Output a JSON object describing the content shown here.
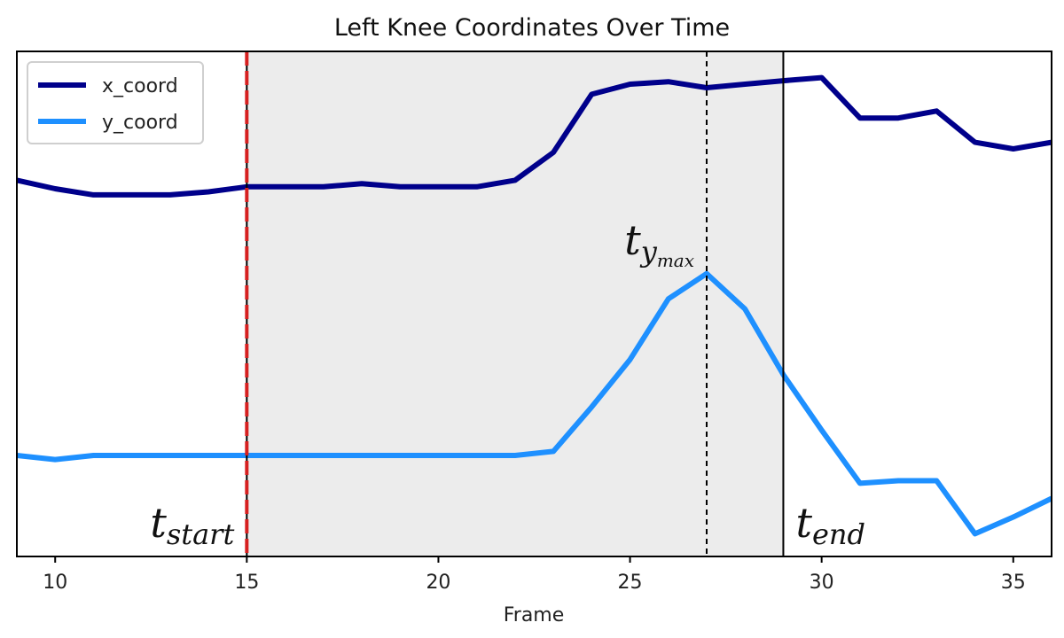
{
  "chart_data": {
    "type": "line",
    "title": "Left Knee Coordinates Over Time",
    "xlabel": "Frame",
    "ylabel": "",
    "xlim": [
      9,
      36
    ],
    "ylim": [
      0,
      1
    ],
    "xticks": [
      10,
      15,
      20,
      25,
      30,
      35
    ],
    "yticks_visible": false,
    "grid": false,
    "legend_position": "top-left",
    "series": [
      {
        "name": "x_coord",
        "color": "#00008b",
        "x": [
          9,
          10,
          11,
          12,
          13,
          14,
          15,
          16,
          17,
          18,
          19,
          20,
          21,
          22,
          23,
          24,
          25,
          26,
          27,
          28,
          29,
          30,
          31,
          32,
          33,
          34,
          35,
          36
        ],
        "y": [
          0.745,
          0.728,
          0.716,
          0.716,
          0.716,
          0.722,
          0.732,
          0.732,
          0.732,
          0.738,
          0.732,
          0.732,
          0.732,
          0.745,
          0.8,
          0.915,
          0.935,
          0.94,
          0.928,
          0.935,
          0.942,
          0.948,
          0.868,
          0.868,
          0.882,
          0.82,
          0.807,
          0.82
        ]
      },
      {
        "name": "y_coord",
        "color": "#1e90ff",
        "x": [
          9,
          10,
          11,
          12,
          13,
          14,
          15,
          16,
          17,
          18,
          19,
          20,
          21,
          22,
          23,
          24,
          25,
          26,
          27,
          28,
          29,
          30,
          31,
          32,
          33,
          34,
          35,
          36
        ],
        "y": [
          0.2,
          0.192,
          0.2,
          0.2,
          0.2,
          0.2,
          0.2,
          0.2,
          0.2,
          0.2,
          0.2,
          0.2,
          0.2,
          0.2,
          0.208,
          0.296,
          0.39,
          0.51,
          0.56,
          0.49,
          0.36,
          0.25,
          0.145,
          0.15,
          0.15,
          0.045,
          0.078,
          0.115
        ]
      }
    ],
    "shaded_region": {
      "x_start": 15,
      "x_end": 29,
      "color": "#ececec"
    },
    "vertical_lines": [
      {
        "x": 15,
        "style": "red-dashed",
        "color": "#d62020"
      },
      {
        "x": 27,
        "style": "black-dotted",
        "color": "#000000"
      },
      {
        "x": 29,
        "style": "solid",
        "color": "#000000"
      }
    ],
    "annotations": [
      {
        "name": "t_start",
        "base": "t",
        "sub": "start",
        "x": 15,
        "anchor": "end"
      },
      {
        "name": "t_ymax",
        "base": "t",
        "sub": "y",
        "subsub": "max",
        "x": 27,
        "anchor": "end"
      },
      {
        "name": "t_end",
        "base": "t",
        "sub": "end",
        "x": 29,
        "anchor": "start"
      }
    ]
  }
}
